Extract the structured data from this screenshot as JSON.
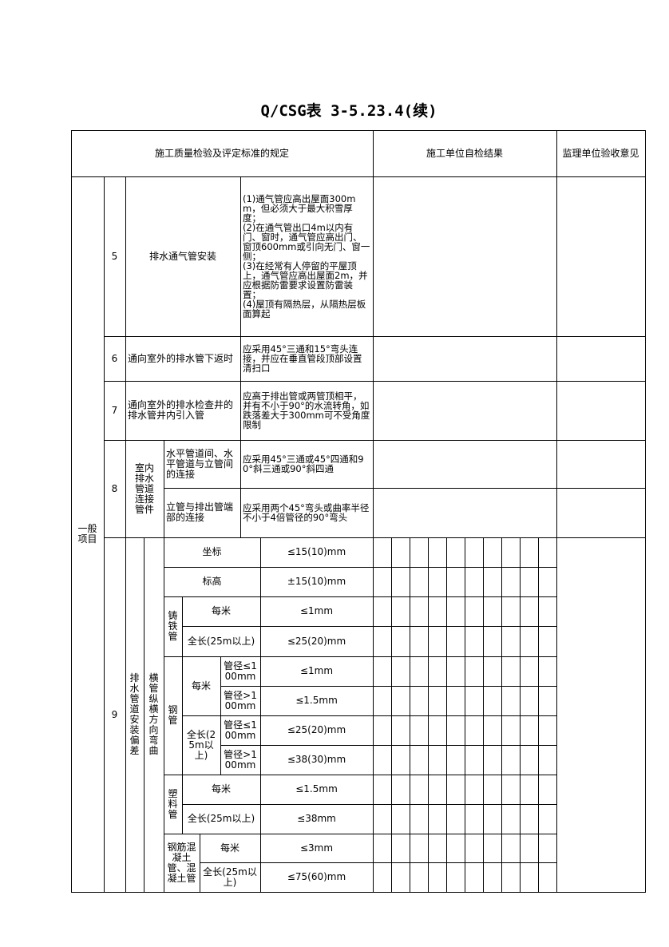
{
  "header": {
    "title": "Q/CSG表 3-5.23.4(续)"
  },
  "table": {
    "columns": [
      "施工质量检验及评定标准的规定",
      "施工单位自检结果",
      "监理单位验收意见"
    ],
    "group": "一般项目",
    "rows": [
      {
        "no": "5",
        "item": "排水通气管安装",
        "standard": [
          "(1)通气管应高出屋面300mm，但必须大于最大积雪厚度；",
          "(2)在通气管出口4m以内有门、窗时，通气管应高出门、窗顶600mm或引向无门、窗一侧；",
          "(3)在经常有人停留的平屋顶上，通气管应高出屋面2m，并应根据防雷要求设置防雷装置；",
          "(4)屋顶有隔热层，从隔热层板面算起"
        ]
      },
      {
        "no": "6",
        "item": "通向室外的排水管下返时",
        "standard": "应采用45°三通和15°弯头连接，并应在垂直管段顶部设置清扫口"
      },
      {
        "no": "7",
        "item": "通向室外的排水检查井的排水管井内引入管",
        "standard": "应高于排出管或两管顶相平，并有不小于90°的水流转角，如跌落差大于300mm可不受角度限制"
      },
      {
        "no": "8",
        "item": "室内排水管道连接管件",
        "subitems": [
          {
            "item": "水平管道间、水平管道与立管间的连接",
            "standard": "应采用45°三通或45°四通和90°斜三通或90°斜四通"
          },
          {
            "item": "立管与排出管端部的连接",
            "standard": "应采用两个45°弯头或曲率半径不小于4倍管径的90°弯头"
          }
        ]
      },
      {
        "no": "9",
        "item": "排水管道安装偏差",
        "subitem": "横管纵横方向弯曲",
        "checks": [
          {
            "item": "坐标",
            "tolerance": "≤15(10)mm"
          },
          {
            "item": "标高",
            "tolerance": "±15(10)mm"
          },
          {
            "pipe": "铸铁管",
            "items": [
              {
                "item": "每米",
                "tolerance": "≤1mm"
              },
              {
                "item": "全长(25m以上)",
                "tolerance": "≤25(20)mm"
              }
            ]
          },
          {
            "pipe": "钢管",
            "items": [
              {
                "item": "每米",
                "sizes": [
                  {
                    "size": "管径≤100mm",
                    "tolerance": "≤1mm"
                  },
                  {
                    "size": "管径>100mm",
                    "tolerance": "≤1.5mm"
                  }
                ]
              },
              {
                "item": "全长(25m以上)",
                "sizes": [
                  {
                    "size": "管径≤100mm",
                    "tolerance": "≤25(20)mm"
                  },
                  {
                    "size": "管径>100mm",
                    "tolerance": "≤38(30)mm"
                  }
                ]
              }
            ]
          },
          {
            "pipe": "塑料管",
            "items": [
              {
                "item": "每米",
                "tolerance": "≤1.5mm"
              },
              {
                "item": "全长(25m以上)",
                "tolerance": "≤38mm"
              }
            ]
          },
          {
            "pipe": "钢筋混凝土管、混凝土管",
            "items": [
              {
                "item": "每米",
                "tolerance": "≤3mm"
              },
              {
                "item": "全长(25m以上)",
                "tolerance": "≤75(60)mm"
              }
            ]
          }
        ]
      }
    ]
  }
}
